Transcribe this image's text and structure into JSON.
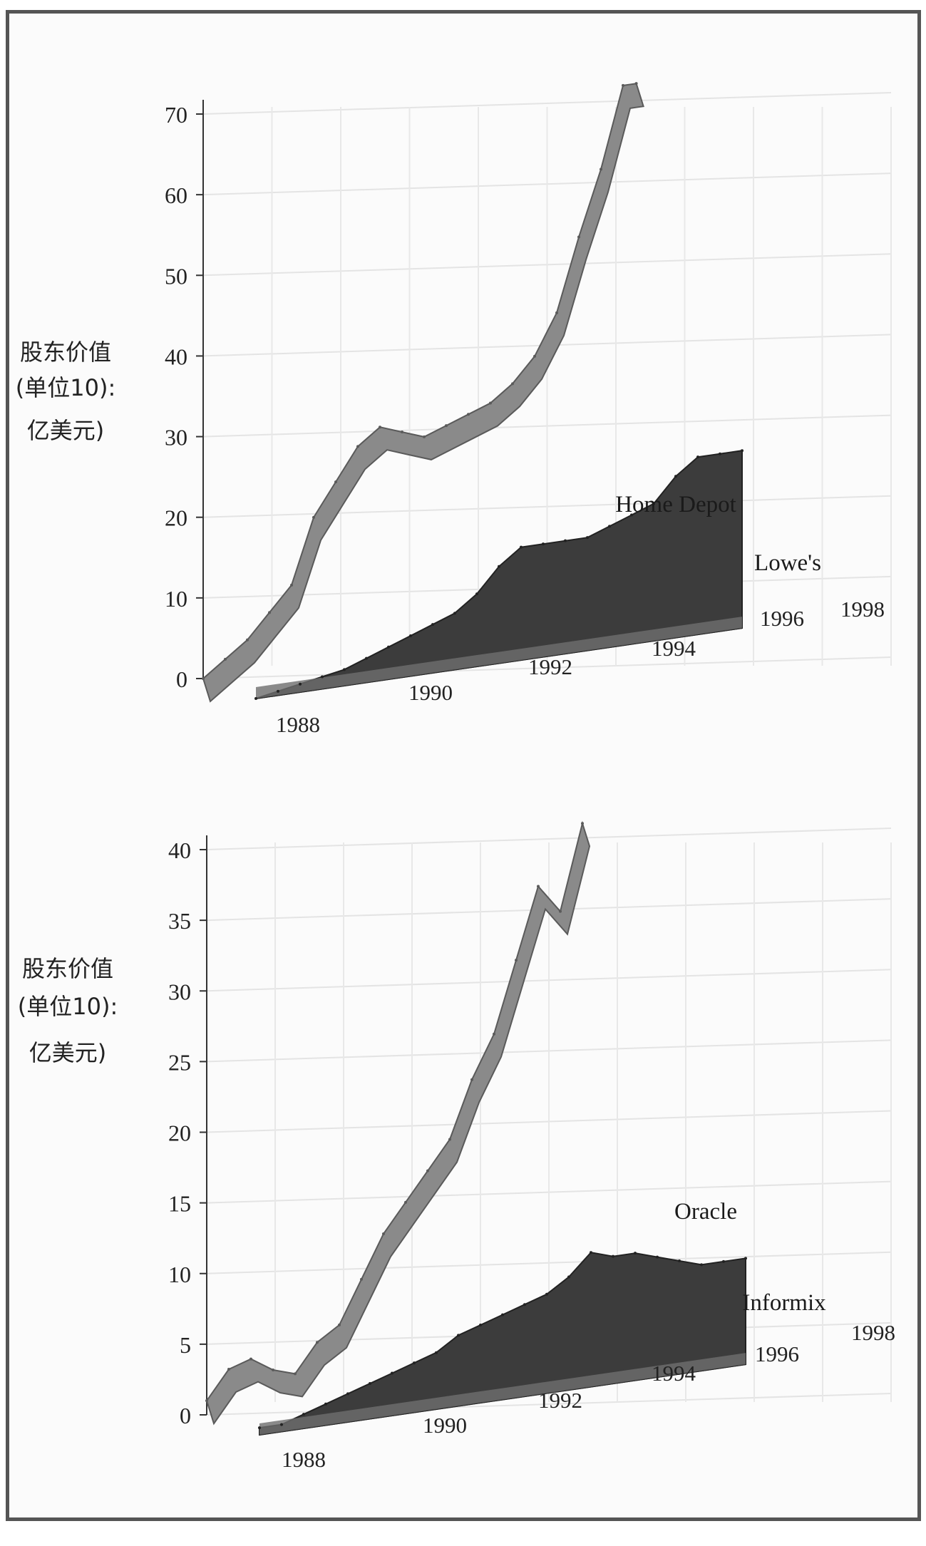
{
  "chart_data": [
    {
      "type": "area",
      "ylabel": [
        "股东价值",
        "(单位10):",
        "亿美元)"
      ],
      "ylim": [
        0,
        70
      ],
      "yticks": [
        0,
        10,
        20,
        30,
        40,
        50,
        60,
        70
      ],
      "xticks": [
        "1988",
        "1990",
        "1992",
        "1994",
        "1996",
        "1998"
      ],
      "grid": true,
      "colors": {
        "front": "#8a8a8a",
        "front_edge": "#5a5a5a",
        "back": "#3c3c3c",
        "back_edge": "#222222"
      },
      "series": [
        {
          "name": "Home Depot",
          "x": [
            1987.5,
            1988,
            1988.5,
            1989,
            1989.5,
            1990,
            1990.5,
            1991,
            1991.5,
            1992,
            1992.5,
            1993,
            1993.5,
            1994,
            1994.5,
            1995,
            1995.5,
            1996,
            1996.5,
            1997,
            1997.3
          ],
          "y": [
            0,
            2,
            4,
            7,
            10,
            18,
            22,
            26,
            28,
            27,
            26,
            27,
            28,
            29,
            31,
            34,
            39,
            48,
            56,
            66,
            66
          ]
        },
        {
          "name": "Lowe's",
          "x": [
            1987.5,
            1988,
            1988.5,
            1989,
            1989.5,
            1990,
            1990.5,
            1991,
            1991.5,
            1992,
            1992.5,
            1993,
            1993.5,
            1994,
            1994.5,
            1995,
            1995.5,
            1996,
            1996.5,
            1997,
            1997.5,
            1998,
            1998.5
          ],
          "y": [
            0,
            0.5,
            1,
            1.5,
            2,
            3,
            4,
            5,
            6,
            7,
            9,
            12,
            14,
            14,
            14,
            14,
            15,
            16,
            17,
            20,
            22,
            22,
            22
          ]
        }
      ]
    },
    {
      "type": "area",
      "ylabel": [
        "股东价值",
        "(单位10):",
        "亿美元)"
      ],
      "ylim": [
        0,
        40
      ],
      "yticks": [
        0,
        5,
        10,
        15,
        20,
        25,
        30,
        35,
        40
      ],
      "xticks": [
        "1988",
        "1990",
        "1992",
        "1994",
        "1996",
        "1998"
      ],
      "grid": true,
      "colors": {
        "front": "#8a8a8a",
        "front_edge": "#5a5a5a",
        "back": "#3c3c3c",
        "back_edge": "#222222"
      },
      "series": [
        {
          "name": "Oracle",
          "x": [
            1987.5,
            1988,
            1988.5,
            1989,
            1989.5,
            1990,
            1990.5,
            1991,
            1991.5,
            1992,
            1992.5,
            1993,
            1993.5,
            1994,
            1994.5,
            1995,
            1995.5,
            1996
          ],
          "y": [
            1,
            3,
            3.5,
            2.5,
            2,
            4,
            5,
            8,
            11,
            13,
            15,
            17,
            21,
            24,
            29,
            34,
            32,
            38
          ]
        },
        {
          "name": "Informix",
          "x": [
            1987.5,
            1988,
            1988.5,
            1989,
            1989.5,
            1990,
            1990.5,
            1991,
            1991.5,
            1992,
            1992.5,
            1993,
            1993.5,
            1994,
            1994.5,
            1995,
            1995.5,
            1996,
            1996.5,
            1997,
            1997.5,
            1998,
            1998.5
          ],
          "y": [
            0.5,
            0.5,
            1,
            1.5,
            2,
            2.5,
            3,
            3.5,
            4,
            5,
            5.5,
            6,
            6.5,
            7,
            8,
            9.5,
            9,
            9,
            8.5,
            8,
            7.5,
            7.5,
            7.5
          ]
        }
      ]
    }
  ]
}
